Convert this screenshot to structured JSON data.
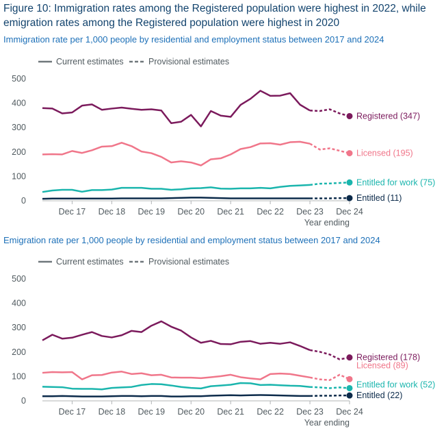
{
  "figure_title": "Figure 10: Immigration rates among the Registered population were highest in 2022, while emigration rates among the Registered population were highest in 2020",
  "colors": {
    "Registered": "#7b1a5c",
    "Licensed": "#f0768a",
    "Entitled for work": "#1ab5ad",
    "Entitled": "#0b2a4a",
    "axis_text": "#505a5f",
    "grid": "#b1b4b6",
    "title": "#12436d",
    "subtitle": "#1d70b8"
  },
  "legend": {
    "current": "Current estimates",
    "provisional": "Provisional estimates"
  },
  "x_axis_title": "Year ending",
  "chart_data": [
    {
      "type": "line",
      "title": "Immigration rate per 1,000 people by residential and employment status between 2017 and 2024",
      "xlabel": "Year ending",
      "ylabel": "",
      "ylim": [
        0,
        500
      ],
      "yticks": [
        0,
        100,
        200,
        300,
        400,
        500
      ],
      "x_tick_labels": [
        "Dec 17",
        "Dec 18",
        "Dec 19",
        "Dec 20",
        "Dec 21",
        "Dec 22",
        "Dec 23",
        "Dec 24"
      ],
      "x_tick_positions": [
        3,
        7,
        11,
        15,
        19,
        23,
        27,
        31
      ],
      "x_range": [
        0,
        31
      ],
      "current_last_index": 27,
      "grid": false,
      "legend_position": "top",
      "series": [
        {
          "name": "Registered",
          "end_label": "Registered (347)",
          "values": [
            380,
            378,
            358,
            362,
            390,
            395,
            373,
            378,
            382,
            377,
            373,
            375,
            370,
            318,
            324,
            352,
            305,
            368,
            349,
            344,
            393,
            418,
            451,
            430,
            431,
            441,
            394,
            370,
            368,
            375,
            358,
            347
          ]
        },
        {
          "name": "Licensed",
          "end_label": "Licensed (195)",
          "values": [
            190,
            191,
            190,
            204,
            196,
            207,
            222,
            224,
            238,
            224,
            202,
            195,
            180,
            157,
            162,
            157,
            145,
            170,
            174,
            190,
            212,
            220,
            235,
            236,
            230,
            240,
            242,
            234,
            210,
            215,
            205,
            195
          ]
        },
        {
          "name": "Entitled for work",
          "end_label": "Entitled for work (75)",
          "values": [
            36,
            42,
            45,
            45,
            37,
            44,
            44,
            46,
            53,
            53,
            53,
            49,
            49,
            45,
            47,
            51,
            52,
            55,
            50,
            49,
            51,
            51,
            53,
            51,
            57,
            61,
            63,
            65,
            70,
            71,
            73,
            75
          ]
        },
        {
          "name": "Entitled",
          "end_label": "Entitled (11)",
          "values": [
            8,
            9,
            9,
            9,
            9,
            9,
            9,
            9,
            10,
            10,
            10,
            10,
            10,
            11,
            12,
            13,
            13,
            12,
            11,
            10,
            10,
            10,
            10,
            10,
            10,
            10,
            10,
            10,
            10,
            10,
            11,
            11
          ]
        }
      ]
    },
    {
      "type": "line",
      "title": "Emigration rate per 1,000 people by residential and employment status between 2017 and 2024",
      "xlabel": "Year ending",
      "ylabel": "",
      "ylim": [
        0,
        500
      ],
      "yticks": [
        0,
        100,
        200,
        300,
        400,
        500
      ],
      "x_tick_labels": [
        "Dec 17",
        "Dec 18",
        "Dec 19",
        "Dec 20",
        "Dec 21",
        "Dec 22",
        "Dec 23",
        "Dec 24"
      ],
      "x_tick_positions": [
        3,
        7,
        11,
        15,
        19,
        23,
        27,
        31
      ],
      "x_range": [
        0,
        31
      ],
      "current_last_index": 27,
      "grid": false,
      "legend_position": "top",
      "series": [
        {
          "name": "Registered",
          "end_label": "Registered (178)",
          "values": [
            248,
            271,
            255,
            259,
            271,
            282,
            266,
            260,
            269,
            287,
            282,
            308,
            326,
            304,
            288,
            260,
            238,
            246,
            233,
            232,
            242,
            245,
            234,
            238,
            234,
            240,
            225,
            208,
            201,
            190,
            170,
            178
          ]
        },
        {
          "name": "Licensed",
          "end_label": "Licensed (89)",
          "values": [
            115,
            118,
            117,
            118,
            88,
            105,
            106,
            116,
            120,
            110,
            113,
            105,
            107,
            96,
            95,
            95,
            93,
            97,
            101,
            107,
            97,
            92,
            88,
            110,
            112,
            110,
            103,
            96,
            88,
            85,
            107,
            89
          ]
        },
        {
          "name": "Entitled for work",
          "end_label": "Entitled for work (52)",
          "values": [
            58,
            57,
            56,
            50,
            49,
            49,
            47,
            53,
            55,
            57,
            65,
            69,
            68,
            63,
            57,
            53,
            51,
            60,
            63,
            66,
            73,
            72,
            65,
            66,
            64,
            62,
            61,
            57,
            55,
            52,
            55,
            52
          ]
        },
        {
          "name": "Entitled",
          "end_label": "Entitled (22)",
          "values": [
            19,
            19,
            20,
            19,
            18,
            18,
            18,
            19,
            20,
            20,
            19,
            20,
            20,
            18,
            18,
            19,
            19,
            21,
            22,
            23,
            22,
            23,
            24,
            23,
            22,
            21,
            20,
            20,
            21,
            21,
            22,
            22
          ]
        }
      ]
    }
  ]
}
